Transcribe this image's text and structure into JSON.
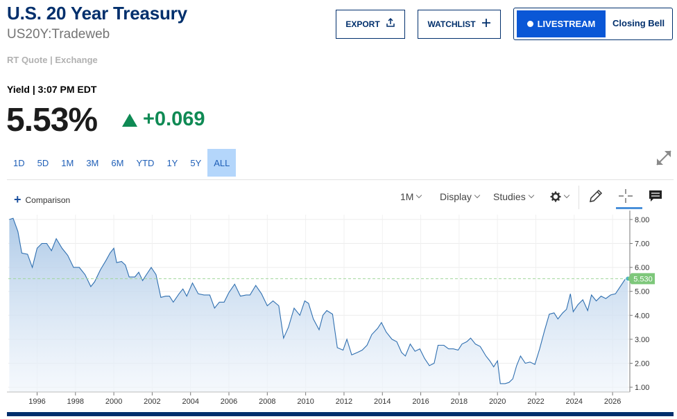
{
  "header": {
    "title": "U.S. 20 Year Treasury",
    "symbol": "US20Y:Tradeweb",
    "source": "RT Quote | Exchange"
  },
  "actions": {
    "export_label": "EXPORT",
    "watchlist_label": "WATCHLIST",
    "livestream_label": "LIVESTREAM",
    "closing_bell_label": "Closing Bell"
  },
  "quote": {
    "label": "Yield | 3:07 PM EDT",
    "value": "5.53%",
    "change": "+0.069",
    "change_direction": "up",
    "up_color": "#0f8a54"
  },
  "ranges": [
    "1D",
    "5D",
    "1M",
    "3M",
    "6M",
    "YTD",
    "1Y",
    "5Y",
    "ALL"
  ],
  "active_range": "ALL",
  "chart_toolbar": {
    "comparison_label": "Comparison",
    "interval_label": "1M",
    "display_label": "Display",
    "studies_label": "Studies",
    "icons": [
      "settings-gear-icon",
      "draw-pencil-icon",
      "crosshair-icon",
      "comment-icon"
    ]
  },
  "chart_data": {
    "type": "area",
    "series_color": "#2f6fb0",
    "current_value_label": "5.530",
    "current_value": 5.53,
    "reference_line": 5.53,
    "ylim": [
      0.8,
      8.2
    ],
    "y_ticks": [
      "8.00",
      "7.00",
      "6.00",
      "5.00",
      "4.00",
      "3.00",
      "2.00",
      "1.00"
    ],
    "x_ticks": [
      "1996",
      "1998",
      "2000",
      "2002",
      "2004",
      "2006",
      "2008",
      "2010",
      "2012",
      "2014",
      "2016",
      "2018",
      "2020",
      "2022",
      "2024",
      "2026"
    ],
    "xlim": [
      1994.5,
      2026.9
    ],
    "points": [
      [
        1994.55,
        8.0
      ],
      [
        1994.75,
        8.05
      ],
      [
        1995.0,
        7.5
      ],
      [
        1995.2,
        6.6
      ],
      [
        1995.5,
        6.55
      ],
      [
        1995.75,
        6.0
      ],
      [
        1996.0,
        6.8
      ],
      [
        1996.25,
        7.0
      ],
      [
        1996.5,
        7.0
      ],
      [
        1996.75,
        6.7
      ],
      [
        1997.0,
        7.2
      ],
      [
        1997.3,
        6.8
      ],
      [
        1997.6,
        6.5
      ],
      [
        1997.9,
        6.0
      ],
      [
        1998.2,
        6.0
      ],
      [
        1998.5,
        5.7
      ],
      [
        1998.8,
        5.2
      ],
      [
        1999.0,
        5.4
      ],
      [
        1999.3,
        5.9
      ],
      [
        1999.6,
        6.3
      ],
      [
        1999.8,
        6.6
      ],
      [
        2000.0,
        6.8
      ],
      [
        2000.15,
        6.2
      ],
      [
        2000.4,
        6.25
      ],
      [
        2000.6,
        6.1
      ],
      [
        2000.8,
        5.6
      ],
      [
        2001.1,
        5.6
      ],
      [
        2001.3,
        5.8
      ],
      [
        2001.5,
        5.45
      ],
      [
        2001.7,
        5.7
      ],
      [
        2001.95,
        6.0
      ],
      [
        2002.2,
        5.7
      ],
      [
        2002.45,
        4.75
      ],
      [
        2002.7,
        4.8
      ],
      [
        2002.9,
        4.8
      ],
      [
        2003.1,
        4.55
      ],
      [
        2003.4,
        4.9
      ],
      [
        2003.6,
        5.1
      ],
      [
        2003.8,
        4.8
      ],
      [
        2004.1,
        5.35
      ],
      [
        2004.4,
        4.9
      ],
      [
        2004.7,
        4.85
      ],
      [
        2005.0,
        4.85
      ],
      [
        2005.25,
        4.3
      ],
      [
        2005.5,
        4.55
      ],
      [
        2005.75,
        4.55
      ],
      [
        2006.0,
        4.95
      ],
      [
        2006.3,
        5.3
      ],
      [
        2006.6,
        4.8
      ],
      [
        2006.9,
        4.85
      ],
      [
        2007.1,
        4.85
      ],
      [
        2007.4,
        5.25
      ],
      [
        2007.7,
        4.9
      ],
      [
        2008.0,
        4.4
      ],
      [
        2008.3,
        4.6
      ],
      [
        2008.6,
        4.4
      ],
      [
        2008.85,
        3.05
      ],
      [
        2009.1,
        3.5
      ],
      [
        2009.4,
        4.3
      ],
      [
        2009.7,
        4.0
      ],
      [
        2009.95,
        4.6
      ],
      [
        2010.15,
        4.5
      ],
      [
        2010.4,
        3.85
      ],
      [
        2010.7,
        3.4
      ],
      [
        2010.9,
        4.0
      ],
      [
        2011.1,
        4.2
      ],
      [
        2011.4,
        4.05
      ],
      [
        2011.65,
        2.65
      ],
      [
        2011.95,
        2.55
      ],
      [
        2012.15,
        3.0
      ],
      [
        2012.4,
        2.35
      ],
      [
        2012.7,
        2.45
      ],
      [
        2012.95,
        2.55
      ],
      [
        2013.2,
        2.75
      ],
      [
        2013.45,
        3.2
      ],
      [
        2013.75,
        3.45
      ],
      [
        2013.95,
        3.7
      ],
      [
        2014.2,
        3.3
      ],
      [
        2014.5,
        3.0
      ],
      [
        2014.75,
        2.9
      ],
      [
        2015.0,
        2.45
      ],
      [
        2015.2,
        2.3
      ],
      [
        2015.45,
        2.8
      ],
      [
        2015.7,
        2.5
      ],
      [
        2015.95,
        2.6
      ],
      [
        2016.2,
        2.2
      ],
      [
        2016.45,
        1.9
      ],
      [
        2016.7,
        2.0
      ],
      [
        2016.9,
        2.75
      ],
      [
        2017.2,
        2.75
      ],
      [
        2017.45,
        2.6
      ],
      [
        2017.7,
        2.6
      ],
      [
        2017.95,
        2.55
      ],
      [
        2018.15,
        2.8
      ],
      [
        2018.4,
        2.9
      ],
      [
        2018.6,
        3.05
      ],
      [
        2018.85,
        2.8
      ],
      [
        2019.1,
        2.7
      ],
      [
        2019.4,
        2.3
      ],
      [
        2019.6,
        2.1
      ],
      [
        2019.8,
        1.85
      ],
      [
        2020.0,
        2.1
      ],
      [
        2020.15,
        1.15
      ],
      [
        2020.4,
        1.15
      ],
      [
        2020.6,
        1.2
      ],
      [
        2020.8,
        1.35
      ],
      [
        2021.0,
        1.9
      ],
      [
        2021.2,
        2.3
      ],
      [
        2021.45,
        2.0
      ],
      [
        2021.7,
        2.05
      ],
      [
        2021.95,
        1.95
      ],
      [
        2022.2,
        2.6
      ],
      [
        2022.45,
        3.35
      ],
      [
        2022.7,
        4.05
      ],
      [
        2022.95,
        4.1
      ],
      [
        2023.15,
        3.85
      ],
      [
        2023.4,
        4.1
      ],
      [
        2023.6,
        4.25
      ],
      [
        2023.8,
        4.9
      ],
      [
        2023.95,
        4.15
      ],
      [
        2024.2,
        4.45
      ],
      [
        2024.45,
        4.65
      ],
      [
        2024.7,
        4.2
      ],
      [
        2024.9,
        4.85
      ],
      [
        2025.15,
        4.6
      ],
      [
        2025.4,
        4.8
      ],
      [
        2025.65,
        4.7
      ],
      [
        2025.9,
        4.85
      ],
      [
        2026.15,
        4.9
      ],
      [
        2026.4,
        5.2
      ],
      [
        2026.65,
        5.5
      ],
      [
        2026.8,
        5.53
      ]
    ]
  }
}
